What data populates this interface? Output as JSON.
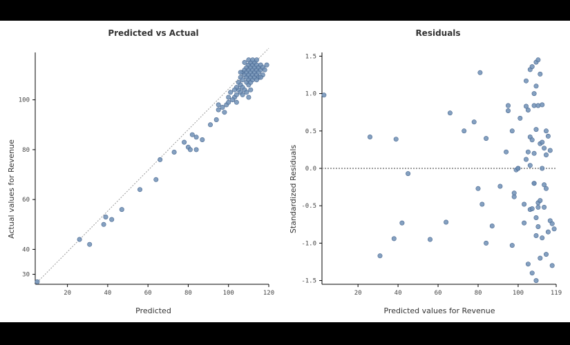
{
  "colors": {
    "point": "#6f8fb5",
    "point_stroke": "#4a6890",
    "reference_line": "#999999"
  },
  "chart_data": [
    {
      "type": "scatter",
      "title": "Predicted vs Actual",
      "xlabel": "Predicted",
      "ylabel": "Actual values for Revenue",
      "xlim": [
        4,
        120
      ],
      "ylim": [
        26,
        119
      ],
      "xticks": [
        20,
        40,
        60,
        80,
        100,
        120
      ],
      "yticks": [
        30,
        40,
        60,
        80,
        100
      ],
      "ytick_labels": [
        "30",
        "40",
        "60",
        "80",
        "100"
      ],
      "reference_line": "diagonal-dotted",
      "grid": false,
      "points": [
        [
          5,
          27
        ],
        [
          26,
          44
        ],
        [
          31,
          42
        ],
        [
          38,
          50
        ],
        [
          39,
          53
        ],
        [
          42,
          52
        ],
        [
          47,
          56
        ],
        [
          56,
          64
        ],
        [
          64,
          68
        ],
        [
          66,
          76
        ],
        [
          73,
          79
        ],
        [
          78,
          83
        ],
        [
          80,
          81
        ],
        [
          81,
          80
        ],
        [
          82,
          86
        ],
        [
          84,
          80
        ],
        [
          84,
          85
        ],
        [
          87,
          84
        ],
        [
          91,
          90
        ],
        [
          94,
          92
        ],
        [
          95,
          96
        ],
        [
          95,
          98
        ],
        [
          97,
          97
        ],
        [
          98,
          95
        ],
        [
          99,
          98
        ],
        [
          100,
          101
        ],
        [
          101,
          103
        ],
        [
          103,
          101
        ],
        [
          104,
          99
        ],
        [
          104,
          102
        ],
        [
          105,
          104
        ],
        [
          105,
          107
        ],
        [
          106,
          103
        ],
        [
          106,
          106
        ],
        [
          106,
          109
        ],
        [
          107,
          105
        ],
        [
          107,
          108
        ],
        [
          107,
          111
        ],
        [
          108,
          104
        ],
        [
          108,
          110
        ],
        [
          108,
          112
        ],
        [
          109,
          103
        ],
        [
          109,
          107
        ],
        [
          109,
          109
        ],
        [
          109,
          111
        ],
        [
          109,
          113
        ],
        [
          110,
          101
        ],
        [
          110,
          106
        ],
        [
          110,
          108
        ],
        [
          110,
          110
        ],
        [
          110,
          112
        ],
        [
          110,
          114
        ],
        [
          111,
          107
        ],
        [
          111,
          109
        ],
        [
          111,
          111
        ],
        [
          111,
          113
        ],
        [
          111,
          115
        ],
        [
          112,
          108
        ],
        [
          112,
          110
        ],
        [
          112,
          112
        ],
        [
          112,
          114
        ],
        [
          113,
          109
        ],
        [
          113,
          111
        ],
        [
          113,
          113
        ],
        [
          113,
          115
        ],
        [
          114,
          110
        ],
        [
          114,
          112
        ],
        [
          114,
          114
        ],
        [
          114,
          116
        ],
        [
          115,
          109
        ],
        [
          115,
          111
        ],
        [
          115,
          113
        ],
        [
          116,
          112
        ],
        [
          116,
          114
        ],
        [
          117,
          110
        ],
        [
          117,
          113
        ],
        [
          118,
          112
        ],
        [
          119,
          114
        ],
        [
          108,
          115
        ],
        [
          110,
          116
        ],
        [
          112,
          116
        ],
        [
          114,
          108
        ],
        [
          116,
          109
        ],
        [
          106,
          111
        ],
        [
          104,
          105
        ],
        [
          103,
          104
        ],
        [
          102,
          100
        ],
        [
          100,
          99
        ],
        [
          107,
          102
        ],
        [
          111,
          104
        ]
      ]
    },
    {
      "type": "scatter",
      "title": "Residuals",
      "xlabel": "Predicted values for Revenue",
      "ylabel": "Standardized Residuals",
      "xlim": [
        2,
        119
      ],
      "ylim": [
        -1.55,
        1.55
      ],
      "xticks": [
        20,
        40,
        60,
        80,
        100,
        119
      ],
      "yticks": [
        -1.5,
        -1.0,
        -0.5,
        0.0,
        0.5,
        1.0,
        1.5
      ],
      "ytick_labels": [
        "-1.5",
        "-1.0",
        "-0.5",
        "0.0",
        "0.5",
        "1.0",
        "1.5"
      ],
      "reference_line": "zero-dotted",
      "grid": false,
      "points": [
        [
          3,
          0.98
        ],
        [
          26,
          0.42
        ],
        [
          31,
          -1.17
        ],
        [
          38,
          -0.94
        ],
        [
          39,
          0.39
        ],
        [
          42,
          -0.73
        ],
        [
          45,
          -0.07
        ],
        [
          56,
          -0.95
        ],
        [
          64,
          -0.72
        ],
        [
          66,
          0.74
        ],
        [
          73,
          0.5
        ],
        [
          78,
          0.62
        ],
        [
          80,
          -0.27
        ],
        [
          81,
          1.28
        ],
        [
          82,
          -0.48
        ],
        [
          84,
          -1.0
        ],
        [
          84,
          0.4
        ],
        [
          87,
          -0.77
        ],
        [
          91,
          -0.24
        ],
        [
          94,
          0.22
        ],
        [
          95,
          0.84
        ],
        [
          95,
          0.77
        ],
        [
          97,
          -1.03
        ],
        [
          97,
          0.5
        ],
        [
          98,
          -0.38
        ],
        [
          98,
          -0.33
        ],
        [
          99,
          -0.02
        ],
        [
          100,
          0.0
        ],
        [
          101,
          0.67
        ],
        [
          103,
          -0.48
        ],
        [
          103,
          -0.73
        ],
        [
          104,
          0.12
        ],
        [
          104,
          0.83
        ],
        [
          104,
          1.17
        ],
        [
          105,
          -1.28
        ],
        [
          105,
          0.78
        ],
        [
          106,
          -0.55
        ],
        [
          106,
          0.04
        ],
        [
          106,
          0.42
        ],
        [
          106,
          1.32
        ],
        [
          107,
          -0.54
        ],
        [
          107,
          0.38
        ],
        [
          107,
          -1.4
        ],
        [
          107,
          1.36
        ],
        [
          108,
          0.2
        ],
        [
          108,
          -0.2
        ],
        [
          108,
          0.84
        ],
        [
          108,
          1.0
        ],
        [
          109,
          -1.5
        ],
        [
          109,
          0.52
        ],
        [
          109,
          -0.9
        ],
        [
          109,
          1.42
        ],
        [
          109,
          -0.66
        ],
        [
          110,
          -0.46
        ],
        [
          110,
          0.84
        ],
        [
          110,
          1.45
        ],
        [
          110,
          -0.78
        ],
        [
          111,
          0.33
        ],
        [
          111,
          1.26
        ],
        [
          111,
          -0.43
        ],
        [
          111,
          -1.2
        ],
        [
          112,
          0.0
        ],
        [
          112,
          0.35
        ],
        [
          112,
          -0.93
        ],
        [
          112,
          0.85
        ],
        [
          113,
          0.27
        ],
        [
          113,
          -0.52
        ],
        [
          113,
          -0.22
        ],
        [
          114,
          0.5
        ],
        [
          114,
          0.18
        ],
        [
          114,
          -0.27
        ],
        [
          114,
          -1.15
        ],
        [
          115,
          0.43
        ],
        [
          115,
          -0.85
        ],
        [
          116,
          -0.7
        ],
        [
          116,
          0.24
        ],
        [
          117,
          -1.3
        ],
        [
          117,
          -0.74
        ],
        [
          118,
          -0.81
        ],
        [
          109,
          1.1
        ],
        [
          108,
          -0.2
        ],
        [
          105,
          0.22
        ],
        [
          100,
          0.0
        ],
        [
          110,
          -0.52
        ]
      ]
    }
  ]
}
